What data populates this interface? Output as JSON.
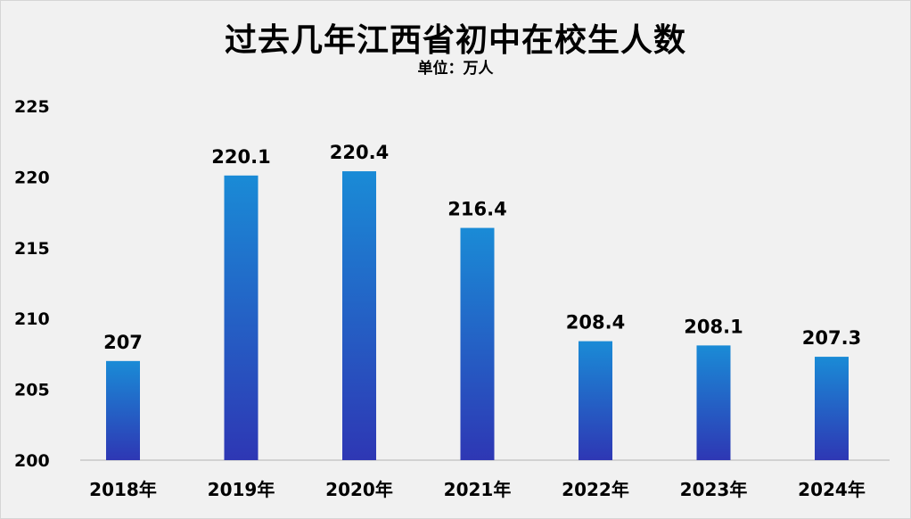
{
  "chart_data": {
    "type": "bar",
    "title": "过去几年江西省初中在校生人数",
    "subtitle": "单位：万人",
    "xlabel": "",
    "ylabel": "",
    "categories": [
      "2018年",
      "2019年",
      "2020年",
      "2021年",
      "2022年",
      "2023年",
      "2024年"
    ],
    "values": [
      207,
      220.1,
      220.4,
      216.4,
      208.4,
      208.1,
      207.3
    ],
    "data_labels": [
      "207",
      "220.1",
      "220.4",
      "216.4",
      "208.4",
      "208.1",
      "207.3"
    ],
    "ylim": [
      200,
      225
    ],
    "yticks": [
      200,
      205,
      210,
      215,
      220,
      225
    ],
    "grid": false,
    "legend": "none"
  },
  "colors": {
    "background": "#f1f1f1",
    "bar_top": "#1a8bd6",
    "bar_bottom": "#2e37b4",
    "axis": "#c8c8c8"
  }
}
